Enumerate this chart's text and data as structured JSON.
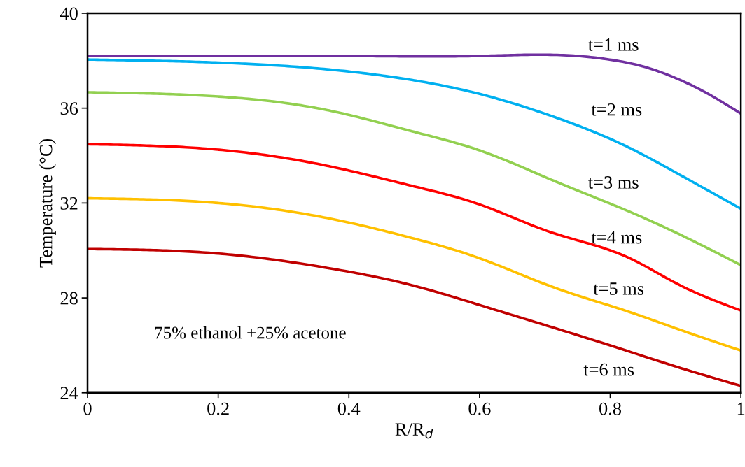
{
  "chart_data": {
    "type": "line",
    "xlabel": "R/R$_{d}$",
    "ylabel": "Temperature (°C)",
    "xlim": [
      0,
      1
    ],
    "xticks": [
      0,
      0.2,
      0.4,
      0.6,
      0.8,
      1
    ],
    "ylim": [
      24,
      40
    ],
    "yticks": [
      24,
      28,
      32,
      36,
      40
    ],
    "grid": false,
    "x": [
      0,
      0.2,
      0.37,
      0.5,
      0.6,
      0.71,
      0.83,
      0.9,
      1
    ],
    "series": [
      {
        "name": "t=1 ms",
        "color": "#7030a0",
        "x": [
          0,
          0.2,
          0.4,
          0.6,
          0.75,
          0.77,
          0.81,
          0.86,
          0.9,
          0.94,
          1
        ],
        "values": [
          38.2,
          38.2,
          38.2,
          38.2,
          38.2,
          38.15,
          38.0,
          37.68,
          37.27,
          36.75,
          35.77
        ]
      },
      {
        "name": "t=2 ms",
        "color": "#00b0f0",
        "values": [
          38.05,
          37.92,
          37.63,
          37.17,
          36.6,
          35.67,
          34.32,
          33.29,
          31.76
        ]
      },
      {
        "name": "t=3 ms",
        "color": "#92d050",
        "values": [
          36.67,
          36.49,
          35.9,
          35.0,
          34.22,
          32.98,
          31.63,
          30.76,
          29.38
        ]
      },
      {
        "name": "t=4 ms",
        "color": "#ff0000",
        "values": [
          34.48,
          34.25,
          33.55,
          32.7,
          31.94,
          30.76,
          29.67,
          28.63,
          27.47
        ]
      },
      {
        "name": "t=5 ms",
        "color": "#ffc000",
        "values": [
          32.2,
          32.0,
          31.35,
          30.5,
          29.67,
          28.48,
          27.4,
          26.72,
          25.78
        ]
      },
      {
        "name": "t=6 ms",
        "color": "#c00000",
        "values": [
          30.06,
          29.87,
          29.25,
          28.51,
          27.7,
          26.77,
          25.73,
          25.11,
          24.29
        ]
      }
    ],
    "annotations": [
      "75% ethanol +25% acetone"
    ]
  }
}
